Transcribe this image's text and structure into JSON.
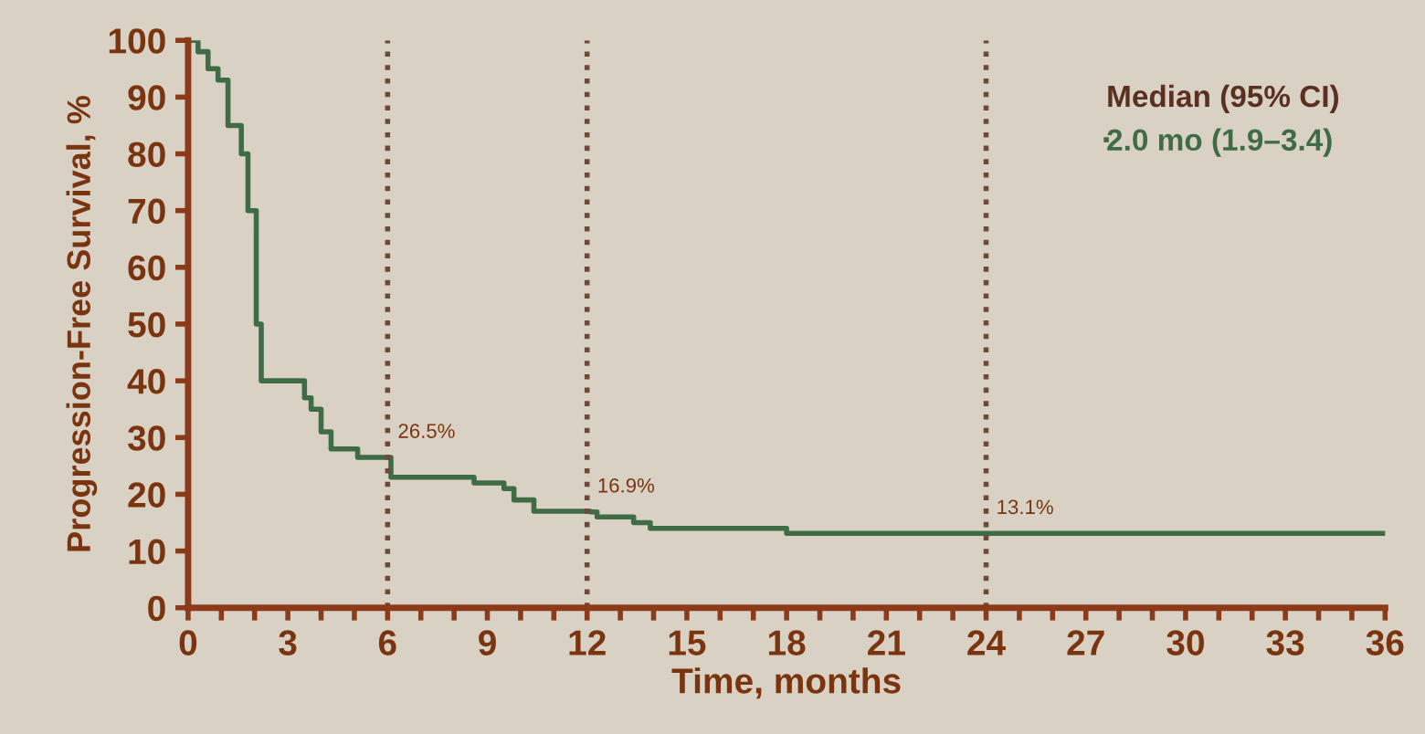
{
  "chart_data": {
    "type": "step",
    "xlabel": "Time, months",
    "ylabel": "Progression-Free Survival, %",
    "legend_title": "Median (95% CI)",
    "legend": "top right",
    "series": [
      {
        "name": "2.0 mo (1.9–3.4)",
        "color": "#3f6b45",
        "x": [
          0,
          0.3,
          0.6,
          0.9,
          1.2,
          1.6,
          1.8,
          2.05,
          2.2,
          3.2,
          3.5,
          3.7,
          4.0,
          4.3,
          5.1,
          6.1,
          7.9,
          8.6,
          9.5,
          9.8,
          10.4,
          12.1,
          12.3,
          13.4,
          13.9,
          18,
          36
        ],
        "values": [
          100,
          98,
          95,
          93,
          85,
          80,
          70,
          50,
          40,
          40,
          37,
          35,
          31,
          28,
          26.5,
          23,
          23,
          22,
          21,
          19,
          17,
          16.9,
          16,
          15,
          14,
          13.1,
          13.1
        ]
      }
    ],
    "xlim": [
      0,
      36
    ],
    "ylim": [
      0,
      100
    ],
    "xticks": [
      0,
      {
        "value": 1,
        "label": null
      },
      {
        "value": 2,
        "label": null
      },
      3,
      {
        "value": 4,
        "label": null
      },
      {
        "value": 5,
        "label": null
      },
      6,
      {
        "value": 7,
        "label": null
      },
      {
        "value": 8,
        "label": null
      },
      9,
      {
        "value": 10,
        "label": null
      },
      {
        "value": 11,
        "label": null
      },
      12,
      {
        "value": 13,
        "label": null
      },
      {
        "value": 14,
        "label": null
      },
      15,
      {
        "value": 16,
        "label": null
      },
      {
        "value": 17,
        "label": null
      },
      18,
      {
        "value": 19,
        "label": null
      },
      {
        "value": 20,
        "label": null
      },
      21,
      {
        "value": 22,
        "label": null
      },
      {
        "value": 23,
        "label": null
      },
      24,
      {
        "value": 25,
        "label": null
      },
      {
        "value": 26,
        "label": null
      },
      27,
      {
        "value": 28,
        "label": null
      },
      {
        "value": 29,
        "label": null
      },
      30,
      {
        "value": 31,
        "label": null
      },
      {
        "value": 32,
        "label": null
      },
      33,
      {
        "value": 34,
        "label": null
      },
      {
        "value": 35,
        "label": null
      },
      36
    ],
    "yticks": [
      0,
      10,
      20,
      30,
      40,
      50,
      60,
      70,
      80,
      90,
      100
    ],
    "ref_lines": [
      {
        "axis": "x",
        "value": 6,
        "line_style": "dotted",
        "color": "#6b4a3a"
      },
      {
        "axis": "x",
        "value": 12,
        "line_style": "dotted",
        "color": "#6b4a3a"
      },
      {
        "axis": "x",
        "value": 24,
        "line_style": "dotted",
        "color": "#6b4a3a"
      }
    ],
    "annotations": [
      {
        "text": "26.5%",
        "x": 6,
        "y": 26.5
      },
      {
        "text": "16.9%",
        "x": 12,
        "y": 16.9
      },
      {
        "text": "13.1%",
        "x": 24,
        "y": 13.1
      }
    ],
    "grid": false,
    "marker": "none",
    "line_style": "solid"
  }
}
